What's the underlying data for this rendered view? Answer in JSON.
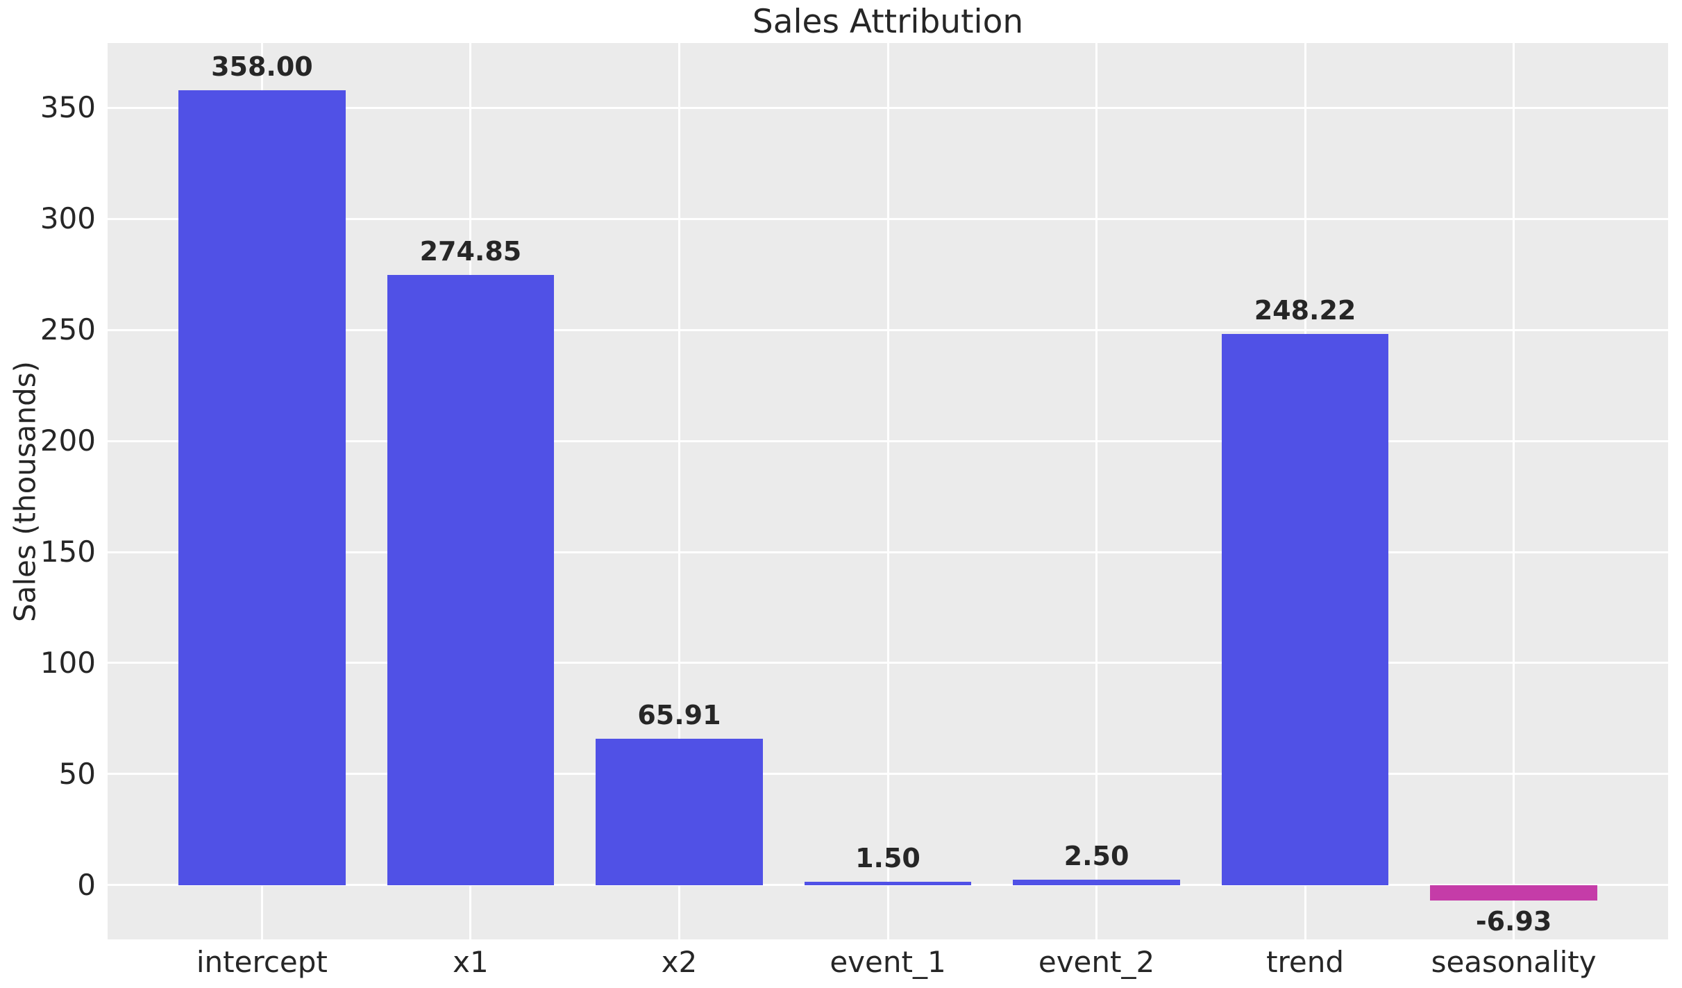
{
  "chart_data": {
    "type": "bar",
    "title": "Sales Attribution",
    "xlabel": "",
    "ylabel": "Sales (thousands)",
    "categories": [
      "intercept",
      "x1",
      "x2",
      "event_1",
      "event_2",
      "trend",
      "seasonality"
    ],
    "values": [
      358.0,
      274.85,
      65.91,
      1.5,
      2.5,
      248.22,
      -6.93
    ],
    "value_labels": [
      "358.00",
      "274.85",
      "65.91",
      "1.50",
      "2.50",
      "248.22",
      "-6.93"
    ],
    "y_ticks": [
      0,
      50,
      100,
      150,
      200,
      250,
      300,
      350
    ],
    "ylim": [
      -24.4,
      379.1
    ],
    "x_padding_units": 0.74,
    "bar_width_units": 0.8,
    "grid": true,
    "legend": false,
    "colors": {
      "positive_bar": "#5051E6",
      "negative_bar": "#C53CA8",
      "plot_bg": "#EBEBEB",
      "figure_bg": "#FFFFFF",
      "grid": "#FFFFFF",
      "text": "#262626"
    }
  }
}
